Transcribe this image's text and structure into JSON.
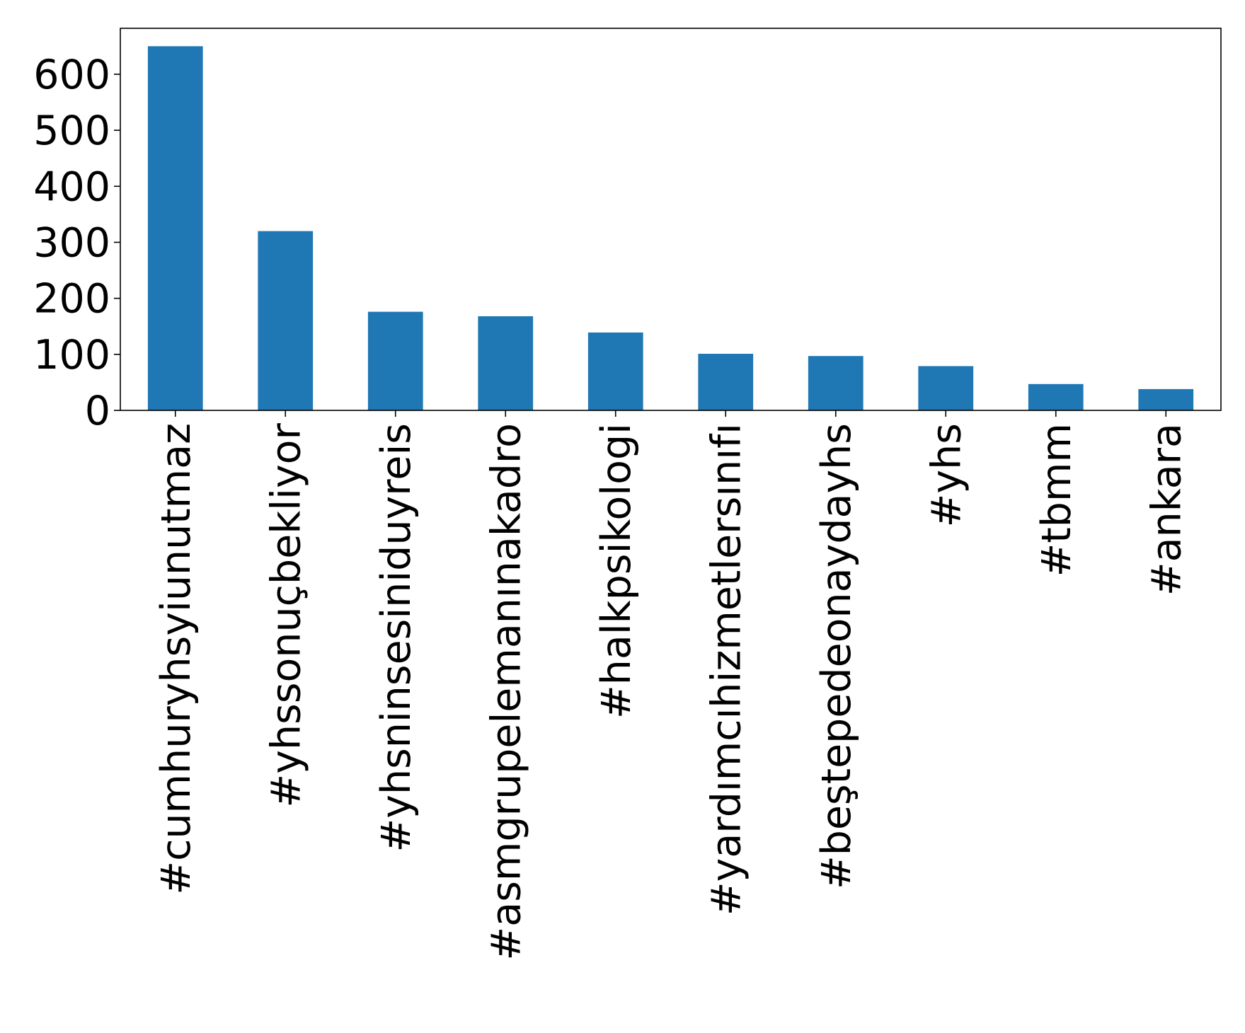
{
  "chart_data": {
    "type": "bar",
    "title": "",
    "xlabel": "",
    "ylabel": "",
    "categories": [
      "#cumhuryhsyiunutmaz",
      "#yhssonuçbekliyor",
      "#yhsninsesiniduyreis",
      "#asmgrupelemanınakadro",
      "#halkpsikologi",
      "#yardımcıhizmetlersınıfı",
      "#beştepedeonaydayhs",
      "#yhs",
      "#tbmm",
      "#ankara"
    ],
    "values": [
      650,
      320,
      176,
      168,
      139,
      101,
      97,
      79,
      47,
      38
    ],
    "ylim": [
      0,
      682
    ],
    "yticks": [
      0,
      100,
      200,
      300,
      400,
      500,
      600
    ],
    "grid": false,
    "bar_color": "#1f77b4"
  }
}
